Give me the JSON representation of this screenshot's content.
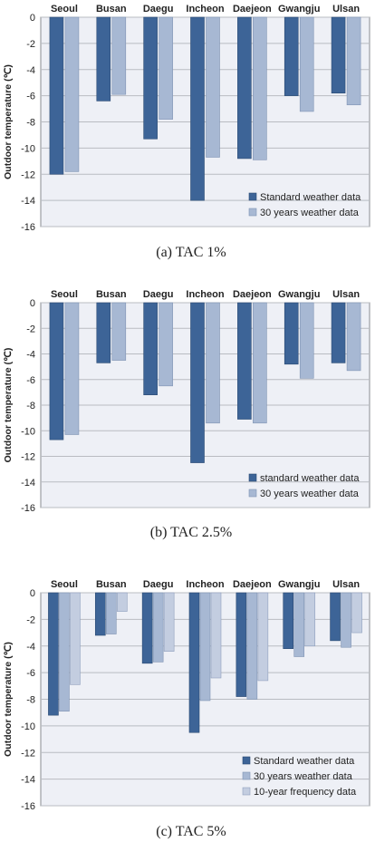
{
  "colors": {
    "plot_bg": "#eef0f6",
    "grid": "#b9bcc2",
    "axis": "#8a8d92",
    "series": [
      "#3d6497",
      "#a7b8d3",
      "#c3cde0"
    ],
    "series_edge": [
      "#2b4a73",
      "#7f93b3",
      "#8f9fbd"
    ]
  },
  "chart_data": [
    {
      "type": "bar",
      "caption": "(a)  TAC 1%",
      "ylabel": "Outdoor temperature (℃)",
      "ylim": [
        -16,
        0
      ],
      "yticks": [
        0,
        -2,
        -4,
        -6,
        -8,
        -10,
        -12,
        -14,
        -16
      ],
      "categories": [
        "Seoul",
        "Busan",
        "Daegu",
        "Incheon",
        "Daejeon",
        "Gwangju",
        "Ulsan"
      ],
      "legend_position": "bottom-right",
      "series": [
        {
          "name": "Standard weather data",
          "values": [
            -12.0,
            -6.4,
            -9.3,
            -14.0,
            -10.8,
            -6.0,
            -5.8
          ]
        },
        {
          "name": "30 years weather data",
          "values": [
            -11.8,
            -5.9,
            -7.8,
            -10.7,
            -10.9,
            -7.2,
            -6.7
          ]
        }
      ]
    },
    {
      "type": "bar",
      "caption": "(b)  TAC 2.5%",
      "ylabel": "Outdoor temperature (℃)",
      "ylim": [
        -16,
        0
      ],
      "yticks": [
        0,
        -2,
        -4,
        -6,
        -8,
        -10,
        -12,
        -14,
        -16
      ],
      "categories": [
        "Seoul",
        "Busan",
        "Daegu",
        "Incheon",
        "Daejeon",
        "Gwangju",
        "Ulsan"
      ],
      "legend_position": "bottom-right",
      "series": [
        {
          "name": "standard weather data",
          "values": [
            -10.7,
            -4.7,
            -7.2,
            -12.5,
            -9.1,
            -4.8,
            -4.7
          ]
        },
        {
          "name": "30 years weather data",
          "values": [
            -10.3,
            -4.5,
            -6.5,
            -9.4,
            -9.4,
            -5.9,
            -5.3
          ]
        }
      ]
    },
    {
      "type": "bar",
      "caption": "(c)  TAC 5%",
      "ylabel": "Outdoor temperature (℃)",
      "ylim": [
        -16,
        0
      ],
      "yticks": [
        0,
        -2,
        -4,
        -6,
        -8,
        -10,
        -12,
        -14,
        -16
      ],
      "categories": [
        "Seoul",
        "Busan",
        "Daegu",
        "Incheon",
        "Daejeon",
        "Gwangju",
        "Ulsan"
      ],
      "legend_position": "bottom-right",
      "series": [
        {
          "name": "Standard weather data",
          "values": [
            -9.2,
            -3.2,
            -5.3,
            -10.5,
            -7.8,
            -4.2,
            -3.6
          ]
        },
        {
          "name": "30 years weather data",
          "values": [
            -8.9,
            -3.1,
            -5.2,
            -8.1,
            -8.0,
            -4.8,
            -4.1
          ]
        },
        {
          "name": "10-year frequency data",
          "values": [
            -6.9,
            -1.4,
            -4.4,
            -6.4,
            -6.6,
            -4.0,
            -3.0
          ]
        }
      ]
    }
  ]
}
